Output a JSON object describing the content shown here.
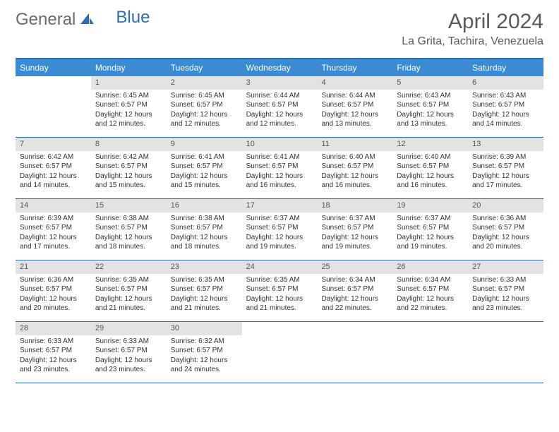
{
  "brand": {
    "part1": "General",
    "part2": "Blue"
  },
  "title": "April 2024",
  "location": "La Grita, Tachira, Venezuela",
  "colors": {
    "header_bar": "#3b8bd4",
    "border": "#2a6fb5",
    "daynum_bg": "#e3e3e3",
    "text": "#333333",
    "title_text": "#5a5a5a"
  },
  "dow": [
    "Sunday",
    "Monday",
    "Tuesday",
    "Wednesday",
    "Thursday",
    "Friday",
    "Saturday"
  ],
  "weeks": [
    [
      {
        "n": "",
        "lines": []
      },
      {
        "n": "1",
        "lines": [
          "Sunrise: 6:45 AM",
          "Sunset: 6:57 PM",
          "Daylight: 12 hours",
          "and 12 minutes."
        ]
      },
      {
        "n": "2",
        "lines": [
          "Sunrise: 6:45 AM",
          "Sunset: 6:57 PM",
          "Daylight: 12 hours",
          "and 12 minutes."
        ]
      },
      {
        "n": "3",
        "lines": [
          "Sunrise: 6:44 AM",
          "Sunset: 6:57 PM",
          "Daylight: 12 hours",
          "and 12 minutes."
        ]
      },
      {
        "n": "4",
        "lines": [
          "Sunrise: 6:44 AM",
          "Sunset: 6:57 PM",
          "Daylight: 12 hours",
          "and 13 minutes."
        ]
      },
      {
        "n": "5",
        "lines": [
          "Sunrise: 6:43 AM",
          "Sunset: 6:57 PM",
          "Daylight: 12 hours",
          "and 13 minutes."
        ]
      },
      {
        "n": "6",
        "lines": [
          "Sunrise: 6:43 AM",
          "Sunset: 6:57 PM",
          "Daylight: 12 hours",
          "and 14 minutes."
        ]
      }
    ],
    [
      {
        "n": "7",
        "lines": [
          "Sunrise: 6:42 AM",
          "Sunset: 6:57 PM",
          "Daylight: 12 hours",
          "and 14 minutes."
        ]
      },
      {
        "n": "8",
        "lines": [
          "Sunrise: 6:42 AM",
          "Sunset: 6:57 PM",
          "Daylight: 12 hours",
          "and 15 minutes."
        ]
      },
      {
        "n": "9",
        "lines": [
          "Sunrise: 6:41 AM",
          "Sunset: 6:57 PM",
          "Daylight: 12 hours",
          "and 15 minutes."
        ]
      },
      {
        "n": "10",
        "lines": [
          "Sunrise: 6:41 AM",
          "Sunset: 6:57 PM",
          "Daylight: 12 hours",
          "and 16 minutes."
        ]
      },
      {
        "n": "11",
        "lines": [
          "Sunrise: 6:40 AM",
          "Sunset: 6:57 PM",
          "Daylight: 12 hours",
          "and 16 minutes."
        ]
      },
      {
        "n": "12",
        "lines": [
          "Sunrise: 6:40 AM",
          "Sunset: 6:57 PM",
          "Daylight: 12 hours",
          "and 16 minutes."
        ]
      },
      {
        "n": "13",
        "lines": [
          "Sunrise: 6:39 AM",
          "Sunset: 6:57 PM",
          "Daylight: 12 hours",
          "and 17 minutes."
        ]
      }
    ],
    [
      {
        "n": "14",
        "lines": [
          "Sunrise: 6:39 AM",
          "Sunset: 6:57 PM",
          "Daylight: 12 hours",
          "and 17 minutes."
        ]
      },
      {
        "n": "15",
        "lines": [
          "Sunrise: 6:38 AM",
          "Sunset: 6:57 PM",
          "Daylight: 12 hours",
          "and 18 minutes."
        ]
      },
      {
        "n": "16",
        "lines": [
          "Sunrise: 6:38 AM",
          "Sunset: 6:57 PM",
          "Daylight: 12 hours",
          "and 18 minutes."
        ]
      },
      {
        "n": "17",
        "lines": [
          "Sunrise: 6:37 AM",
          "Sunset: 6:57 PM",
          "Daylight: 12 hours",
          "and 19 minutes."
        ]
      },
      {
        "n": "18",
        "lines": [
          "Sunrise: 6:37 AM",
          "Sunset: 6:57 PM",
          "Daylight: 12 hours",
          "and 19 minutes."
        ]
      },
      {
        "n": "19",
        "lines": [
          "Sunrise: 6:37 AM",
          "Sunset: 6:57 PM",
          "Daylight: 12 hours",
          "and 19 minutes."
        ]
      },
      {
        "n": "20",
        "lines": [
          "Sunrise: 6:36 AM",
          "Sunset: 6:57 PM",
          "Daylight: 12 hours",
          "and 20 minutes."
        ]
      }
    ],
    [
      {
        "n": "21",
        "lines": [
          "Sunrise: 6:36 AM",
          "Sunset: 6:57 PM",
          "Daylight: 12 hours",
          "and 20 minutes."
        ]
      },
      {
        "n": "22",
        "lines": [
          "Sunrise: 6:35 AM",
          "Sunset: 6:57 PM",
          "Daylight: 12 hours",
          "and 21 minutes."
        ]
      },
      {
        "n": "23",
        "lines": [
          "Sunrise: 6:35 AM",
          "Sunset: 6:57 PM",
          "Daylight: 12 hours",
          "and 21 minutes."
        ]
      },
      {
        "n": "24",
        "lines": [
          "Sunrise: 6:35 AM",
          "Sunset: 6:57 PM",
          "Daylight: 12 hours",
          "and 21 minutes."
        ]
      },
      {
        "n": "25",
        "lines": [
          "Sunrise: 6:34 AM",
          "Sunset: 6:57 PM",
          "Daylight: 12 hours",
          "and 22 minutes."
        ]
      },
      {
        "n": "26",
        "lines": [
          "Sunrise: 6:34 AM",
          "Sunset: 6:57 PM",
          "Daylight: 12 hours",
          "and 22 minutes."
        ]
      },
      {
        "n": "27",
        "lines": [
          "Sunrise: 6:33 AM",
          "Sunset: 6:57 PM",
          "Daylight: 12 hours",
          "and 23 minutes."
        ]
      }
    ],
    [
      {
        "n": "28",
        "lines": [
          "Sunrise: 6:33 AM",
          "Sunset: 6:57 PM",
          "Daylight: 12 hours",
          "and 23 minutes."
        ]
      },
      {
        "n": "29",
        "lines": [
          "Sunrise: 6:33 AM",
          "Sunset: 6:57 PM",
          "Daylight: 12 hours",
          "and 23 minutes."
        ]
      },
      {
        "n": "30",
        "lines": [
          "Sunrise: 6:32 AM",
          "Sunset: 6:57 PM",
          "Daylight: 12 hours",
          "and 24 minutes."
        ]
      },
      {
        "n": "",
        "lines": []
      },
      {
        "n": "",
        "lines": []
      },
      {
        "n": "",
        "lines": []
      },
      {
        "n": "",
        "lines": []
      }
    ]
  ]
}
